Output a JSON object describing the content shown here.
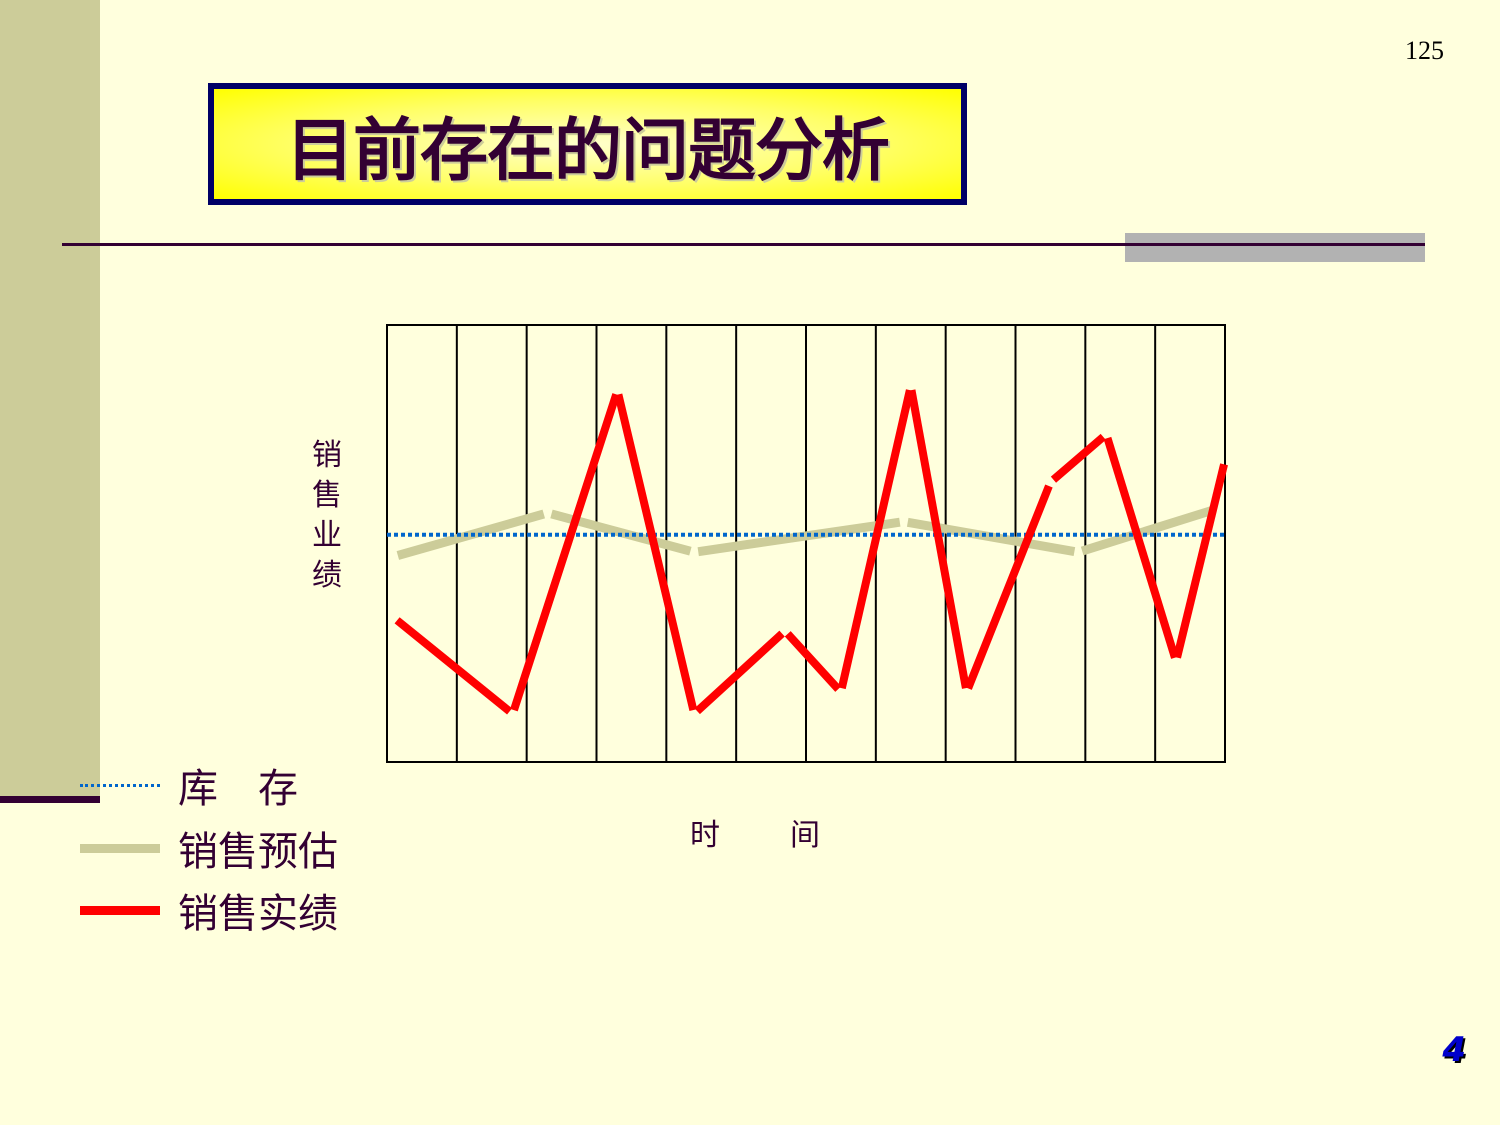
{
  "page_number": "125",
  "slide_number": "4",
  "title": "目前存在的问题分析",
  "colors": {
    "background": "#ffffdd",
    "sidebar": "#cccc99",
    "title_text": "#330033",
    "title_border": "#000066",
    "title_fill": "#ffff00"
  },
  "chart_data": {
    "type": "line",
    "title": "",
    "xlabel": "时　　间",
    "ylabel": "销售业绩",
    "xlim": [
      0,
      12
    ],
    "ylim": [
      0,
      100
    ],
    "grid": {
      "vertical": true,
      "horizontal": false,
      "columns": 12
    },
    "axis_ticks_printed": false,
    "legend_placement": "bottom-left",
    "series": [
      {
        "name": "库　存",
        "color": "#0066cc",
        "style": "dotted",
        "x": [
          0,
          12
        ],
        "values": [
          52,
          52
        ]
      },
      {
        "name": "销售预估",
        "color": "#cccc99",
        "style": "solid-segmented",
        "x": [
          0.1,
          2.3,
          4.4,
          7.4,
          9.9,
          11.9
        ],
        "values": [
          47,
          57,
          48,
          55,
          48,
          58
        ]
      },
      {
        "name": "销售实绩",
        "color": "#ff0000",
        "style": "solid-segmented",
        "x": [
          0.1,
          1.8,
          3.3,
          4.4,
          5.7,
          6.5,
          7.5,
          8.3,
          9.5,
          10.3,
          11.3,
          12.0
        ],
        "values": [
          33,
          11,
          85,
          11,
          30,
          16,
          86,
          16,
          64,
          75,
          23,
          69
        ]
      }
    ]
  }
}
